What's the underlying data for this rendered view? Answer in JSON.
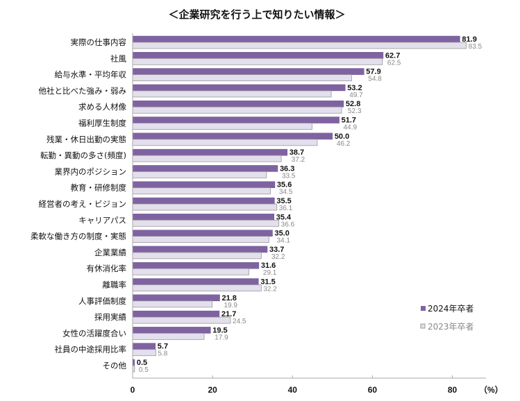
{
  "chart_data": {
    "type": "bar",
    "orientation": "horizontal",
    "title": "＜企業研究を行う上で知りたい情報＞",
    "unit_label": "（%）",
    "xlim": [
      0,
      85
    ],
    "xticks": [
      0,
      20,
      40,
      60,
      80
    ],
    "grid": false,
    "legend_position": "bottom-right",
    "categories": [
      "実際の仕事内容",
      "社風",
      "給与水準・平均年収",
      "他社と比べた強み・弱み",
      "求める人材像",
      "福利厚生制度",
      "残業・休日出勤の実態",
      "転勤・異動の多さ(頻度)",
      "業界内のポジション",
      "教育・研修制度",
      "経営者の考え・ビジョン",
      "キャリアパス",
      "柔軟な働き方の制度・実態",
      "企業業績",
      "有休消化率",
      "離職率",
      "人事評価制度",
      "採用実績",
      "女性の活躍度合い",
      "社員の中途採用比率",
      "その他"
    ],
    "series": [
      {
        "name": "2024年卒者",
        "color": "#7f63a1",
        "values": [
          81.9,
          62.7,
          57.9,
          53.2,
          52.8,
          51.7,
          50.0,
          38.7,
          36.3,
          35.6,
          35.5,
          35.4,
          35.0,
          33.7,
          31.6,
          31.5,
          21.8,
          21.7,
          19.5,
          5.7,
          0.5
        ]
      },
      {
        "name": "2023年卒者",
        "color": "#e4dfec",
        "values": [
          83.5,
          62.5,
          54.8,
          49.7,
          52.3,
          44.9,
          46.2,
          37.2,
          33.5,
          34.5,
          36.1,
          36.6,
          34.1,
          32.2,
          29.1,
          32.2,
          19.9,
          24.5,
          17.9,
          5.8,
          0.5
        ]
      }
    ]
  }
}
